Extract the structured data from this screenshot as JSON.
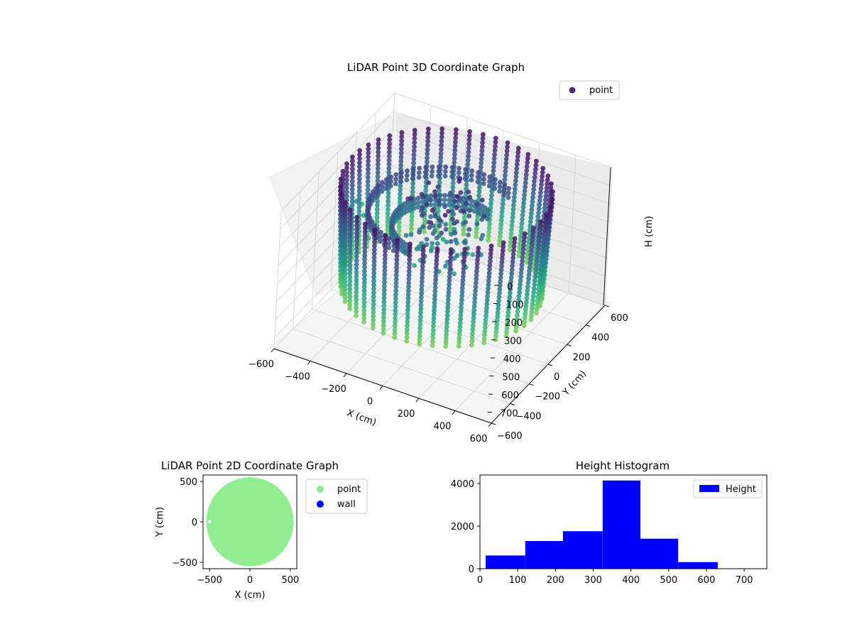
{
  "chart_data": [
    {
      "type": "scatter3d",
      "title": "LiDAR Point 3D Coordinate Graph",
      "xlabel": "X (cm)",
      "ylabel": "Y (cm)",
      "zlabel": "H (cm)",
      "xlim": [
        -600,
        600
      ],
      "ylim": [
        -600,
        600
      ],
      "zlim": [
        0,
        760
      ],
      "z_inverted": true,
      "xticks": [
        "−600",
        "−400",
        "−200",
        "0",
        "200",
        "400",
        "600"
      ],
      "yticks": [
        "−600",
        "−400",
        "−200",
        "0",
        "200",
        "400",
        "600"
      ],
      "zticks": [
        "0",
        "100",
        "200",
        "300",
        "400",
        "500",
        "600",
        "700"
      ],
      "legend": {
        "placement": "top-right",
        "entries": [
          {
            "label": "point",
            "color": "#472d7b"
          }
        ]
      },
      "colormap": "viridis",
      "grid": true,
      "structure": {
        "ring_radius": 520,
        "ring_center": [
          0,
          0
        ],
        "ring_top_height": 0,
        "ring_bottom_height": 560,
        "spoke_count": 48,
        "inner_arc_radii": [
          380,
          260
        ],
        "inner_arc_heights": [
          120,
          200
        ],
        "outlier_points": [
          [
            -560,
            80,
            340
          ],
          [
            -560,
            150,
            340
          ],
          [
            -500,
            120,
            380
          ],
          [
            -430,
            40,
            440
          ],
          [
            -600,
            300,
            450
          ]
        ]
      }
    },
    {
      "type": "scatter",
      "title": "LiDAR Point 2D Coordinate Graph",
      "xlabel": "X (cm)",
      "ylabel": "Y (cm)",
      "xlim": [
        -580,
        580
      ],
      "ylim": [
        -580,
        580
      ],
      "xticks": [
        "−500",
        "0",
        "500"
      ],
      "yticks": [
        "−500",
        "0",
        "500"
      ],
      "legend": {
        "placement": "outside-right",
        "entries": [
          {
            "label": "point",
            "color": "#90ee90"
          },
          {
            "label": "wall",
            "color": "#0000ff"
          }
        ]
      },
      "series": [
        {
          "name": "point",
          "shape": "filled-disc",
          "center": [
            0,
            0
          ],
          "radius": 540,
          "count": 0
        },
        {
          "name": "wall",
          "count": 0
        }
      ]
    },
    {
      "type": "histogram",
      "title": "Height Histogram",
      "xlabel": "",
      "ylabel": "",
      "xlim": [
        0,
        760
      ],
      "ylim": [
        0,
        4400
      ],
      "xticks": [
        "0",
        "100",
        "200",
        "300",
        "400",
        "500",
        "600",
        "700"
      ],
      "yticks": [
        "0",
        "2000",
        "4000"
      ],
      "legend": {
        "placement": "top-right",
        "entries": [
          {
            "label": "Height",
            "color": "#0000ff"
          }
        ]
      },
      "bins": [
        {
          "x0": 15,
          "x1": 120,
          "count": 620
        },
        {
          "x0": 120,
          "x1": 220,
          "count": 1300
        },
        {
          "x0": 220,
          "x1": 325,
          "count": 1760
        },
        {
          "x0": 325,
          "x1": 425,
          "count": 4140
        },
        {
          "x0": 425,
          "x1": 525,
          "count": 1410
        },
        {
          "x0": 525,
          "x1": 630,
          "count": 310
        },
        {
          "x0": 630,
          "x1": 735,
          "count": 0
        }
      ]
    }
  ]
}
